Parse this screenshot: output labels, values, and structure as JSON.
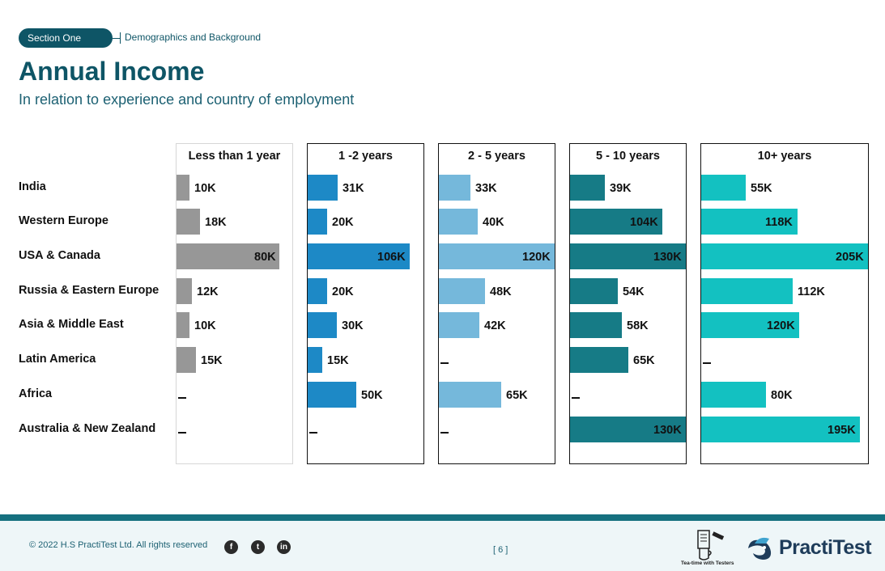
{
  "header": {
    "section_pill": "Section One",
    "section_label": "Demographics and Background",
    "title": "Annual Income",
    "subtitle": "In relation to experience and country of employment"
  },
  "colors": {
    "brand": "#0e5566",
    "footer_band": "#15707f",
    "series": [
      "#979797",
      "#1d89c6",
      "#75b8db",
      "#167b86",
      "#13c1c1"
    ]
  },
  "chart_data": {
    "type": "bar",
    "orientation": "horizontal",
    "title": "Annual Income",
    "subtitle": "In relation to experience and country of employment",
    "unit": "K",
    "categories": [
      "India",
      "Western Europe",
      "USA & Canada",
      "Russia & Eastern Europe",
      "Asia & Middle East",
      "Latin America",
      "Africa",
      "Australia & New Zealand"
    ],
    "series": [
      {
        "name": "Less than 1 year",
        "values": [
          10,
          18,
          80,
          12,
          10,
          15,
          null,
          null
        ],
        "labels": [
          "10K",
          "18K",
          "80K",
          "12K",
          "10K",
          "15K",
          "–",
          "–"
        ]
      },
      {
        "name": "1 -2 years",
        "values": [
          31,
          20,
          106,
          20,
          30,
          15,
          50,
          null
        ],
        "labels": [
          "31K",
          "20K",
          "106K",
          "20K",
          "30K",
          "15K",
          "50K",
          "–"
        ]
      },
      {
        "name": "2 - 5 years",
        "values": [
          33,
          40,
          120,
          48,
          42,
          null,
          65,
          null
        ],
        "labels": [
          "33K",
          "40K",
          "120K",
          "48K",
          "42K",
          "–",
          "65K",
          "–"
        ]
      },
      {
        "name": "5 - 10 years",
        "values": [
          39,
          104,
          130,
          54,
          58,
          65,
          null,
          130
        ],
        "labels": [
          "39K",
          "104K",
          "130K",
          "54K",
          "58K",
          "65K",
          "–",
          "130K"
        ]
      },
      {
        "name": "10+ years",
        "values": [
          55,
          118,
          205,
          112,
          120,
          null,
          80,
          195
        ],
        "labels": [
          "55K",
          "118K",
          "205K",
          "112K",
          "120K",
          "–",
          "80K",
          "195K"
        ]
      }
    ]
  },
  "footer": {
    "copyright": "© 2022 H.S PractiTest Ltd. All rights reserved",
    "social": [
      "facebook-icon",
      "twitter-icon",
      "linkedin-icon"
    ],
    "page_number": "[ 6 ]",
    "tea_caption": "Tea-time with Testers",
    "brand_logo": "PractiTest"
  }
}
